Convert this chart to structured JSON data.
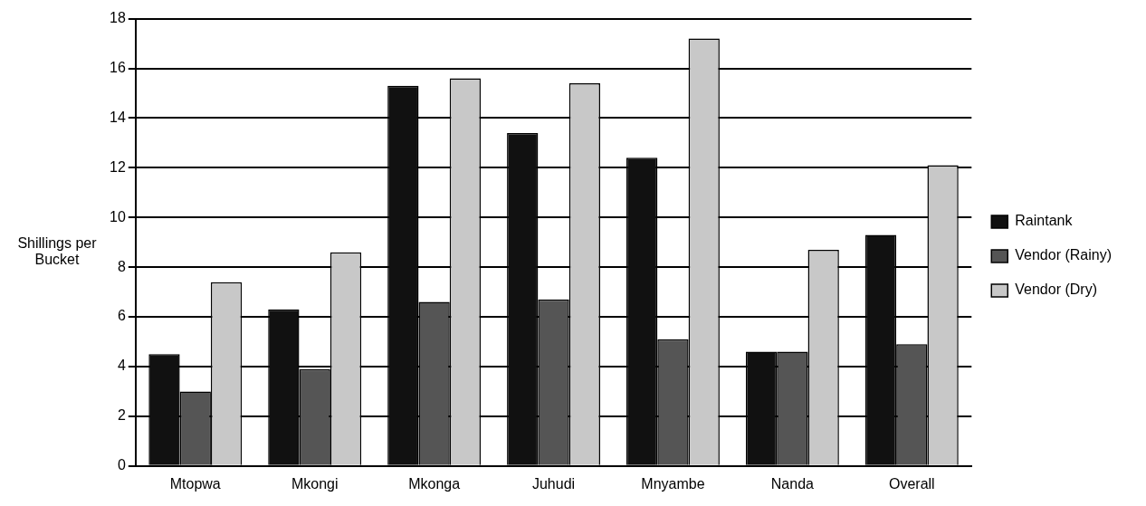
{
  "chart_data": {
    "type": "bar",
    "ylabel": "Shillings per Bucket",
    "categories": [
      "Mtopwa",
      "Mkongi",
      "Mkonga",
      "Juhudi",
      "Mnyambe",
      "Nanda",
      "Overall"
    ],
    "series": [
      {
        "name": "Raintank",
        "color": "#111111",
        "values": [
          4.5,
          6.3,
          15.3,
          13.4,
          12.4,
          4.6,
          9.3
        ]
      },
      {
        "name": "Vendor (Rainy)",
        "color": "#555555",
        "values": [
          3,
          3.9,
          6.6,
          6.7,
          5.1,
          4.6,
          4.9
        ]
      },
      {
        "name": "Vendor (Dry)",
        "color": "#c8c8c8",
        "values": [
          7.4,
          8.6,
          15.6,
          15.4,
          17.2,
          8.7,
          12.1
        ]
      }
    ],
    "ylim": [
      0,
      18
    ],
    "yticks": [
      0,
      2,
      4,
      6,
      8,
      10,
      12,
      14,
      16,
      18
    ],
    "grid": "y",
    "legend": "right"
  }
}
